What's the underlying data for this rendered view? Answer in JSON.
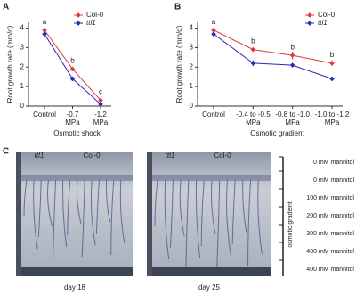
{
  "chart_data": [
    {
      "type": "line",
      "panel": "A",
      "ylabel": "Root growth rate (mm/d)",
      "xlabel": "Osmotic shock",
      "categories": [
        "Control",
        "-0.7\nMPa",
        "-1.2\nMPa"
      ],
      "series": [
        {
          "name": "Col-0",
          "color": "#e0393e",
          "values": [
            3.9,
            1.9,
            0.3
          ],
          "errors": [
            0.1,
            0.1,
            0.05
          ]
        },
        {
          "name": "ttl1",
          "color": "#2a2ab5",
          "values": [
            3.7,
            1.4,
            0.1
          ],
          "errors": [
            0.15,
            0.1,
            0.05
          ]
        }
      ],
      "annotations": [
        "a",
        "b",
        "c"
      ],
      "ylim": [
        0,
        4.3
      ],
      "yticks": [
        0,
        1,
        2,
        3,
        4
      ],
      "legend": "upper right"
    },
    {
      "type": "line",
      "panel": "B",
      "ylabel": "Root growth rate (mm/d)",
      "xlabel": "Osmotic gradient",
      "categories": [
        "Control",
        "-0.4 to -0.5\nMPa",
        "-0.8 to -1.0\nMPa",
        "-1.0 to -1.2\nMPa"
      ],
      "series": [
        {
          "name": "Col-0",
          "color": "#e0393e",
          "values": [
            3.9,
            2.9,
            2.6,
            2.2
          ],
          "errors": [
            0.1,
            0.1,
            0.2,
            0.15
          ]
        },
        {
          "name": "ttl1",
          "color": "#2a2ab5",
          "values": [
            3.7,
            2.2,
            2.1,
            1.4
          ],
          "errors": [
            0.15,
            0.15,
            0.1,
            0.1
          ]
        }
      ],
      "annotations": [
        "a",
        "b",
        "b",
        "b"
      ],
      "ylim": [
        0,
        4.3
      ],
      "yticks": [
        0,
        1,
        2,
        3,
        4
      ],
      "legend": "upper right"
    }
  ],
  "photo_panel": {
    "panel": "C",
    "images": [
      {
        "labels": [
          "ttl1",
          "Col-0"
        ],
        "caption": "day 18"
      },
      {
        "labels": [
          "ttl1",
          "Col-0"
        ],
        "caption": "day 25"
      }
    ],
    "scale_labels": [
      "0 mM mannitol",
      "0 mM mannitol",
      "100 mM mannitol",
      "200 mM mannitol",
      "300 mM mannitol",
      "400 mM mannitol",
      "400 mM mannitol"
    ],
    "scale_title": "osmotic gradient"
  }
}
